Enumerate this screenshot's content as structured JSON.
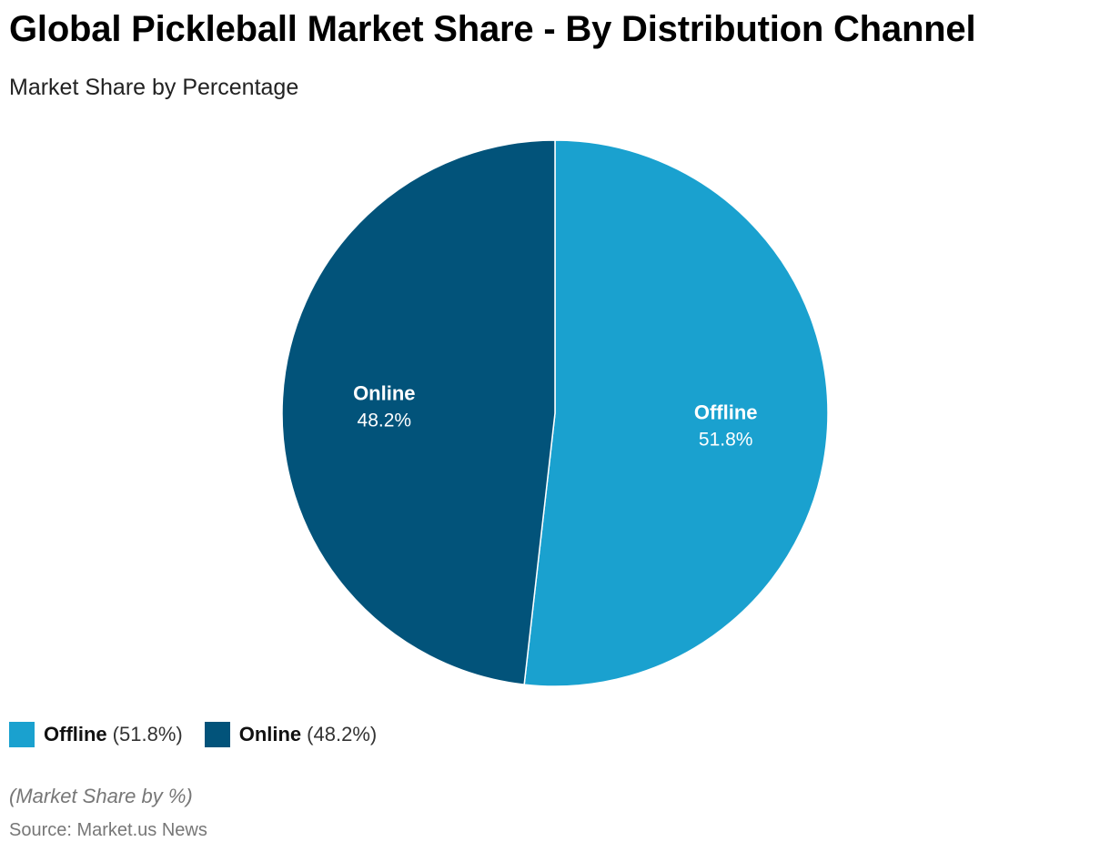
{
  "title": "Global Pickleball Market Share - By Distribution Channel",
  "subtitle": "Market Share by Percentage",
  "note": "(Market Share by %)",
  "source": "Source: Market.us News",
  "legend": [
    {
      "name": "Offline",
      "pct": "(51.8%)",
      "color": "#1aa1cf"
    },
    {
      "name": "Online",
      "pct": "(48.2%)",
      "color": "#02537a"
    }
  ],
  "chart_data": {
    "type": "pie",
    "title": "Global Pickleball Market Share - By Distribution Channel",
    "subtitle": "Market Share by Percentage",
    "slices": [
      {
        "label": "Offline",
        "value": 51.8,
        "display": "51.8%",
        "color": "#1aa1cf"
      },
      {
        "label": "Online",
        "value": 48.2,
        "display": "48.2%",
        "color": "#02537a"
      }
    ],
    "start": "top",
    "direction": "clockwise",
    "legend_position": "bottom-left"
  }
}
